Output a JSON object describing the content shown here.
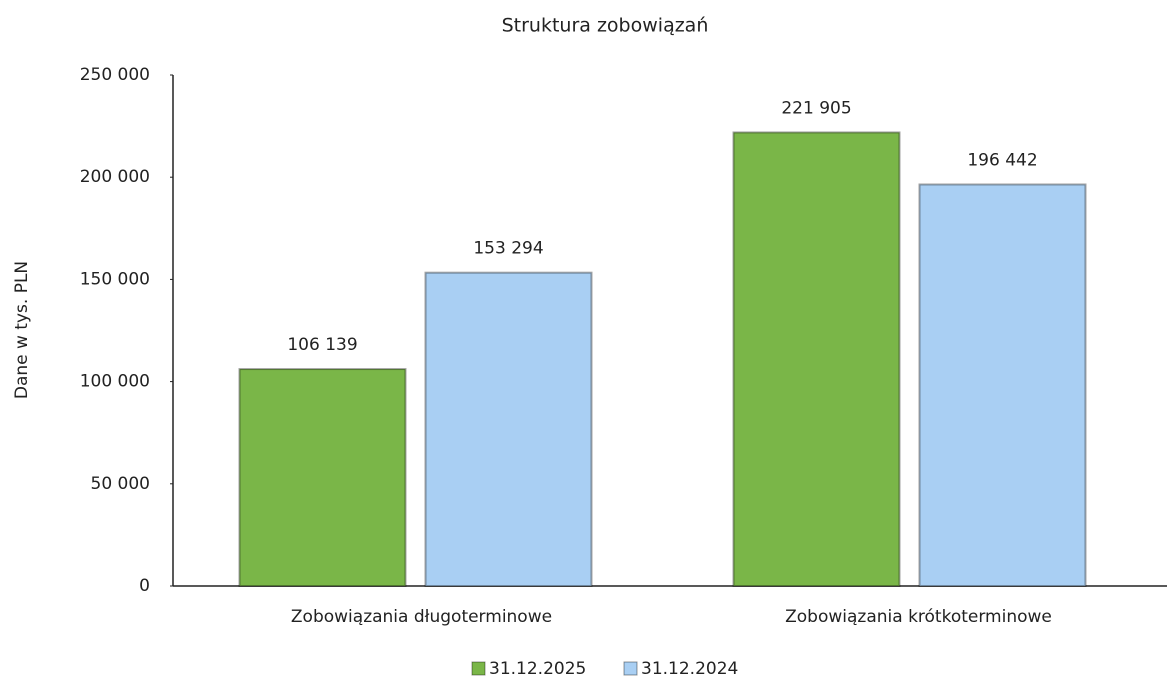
{
  "chart_data": {
    "type": "bar",
    "title": "Struktura zobowiązań",
    "y_label": "Dane w tys. PLN",
    "categories": [
      "Zobowiązania długoterminowe",
      "Zobowiązania krótkoterminowe"
    ],
    "series": [
      {
        "name": "31.12.2025",
        "color": "#7ab648",
        "values": [
          106139,
          221905
        ],
        "value_labels": [
          "106 139",
          "221 905"
        ]
      },
      {
        "name": "31.12.2024",
        "color": "#a9cff3",
        "values": [
          153294,
          196442
        ],
        "value_labels": [
          "153 294",
          "196 442"
        ]
      }
    ],
    "ylim": [
      0,
      250000
    ],
    "yticks": [
      0,
      {
        "value": 50000,
        "label": "50 000"
      },
      {
        "value": 100000,
        "label": "100 000"
      },
      {
        "value": 150000,
        "label": "150 000"
      },
      {
        "value": 200000,
        "label": "200 000"
      },
      {
        "value": 250000,
        "label": "250 000"
      }
    ],
    "grid": false,
    "legend": "bottom"
  }
}
